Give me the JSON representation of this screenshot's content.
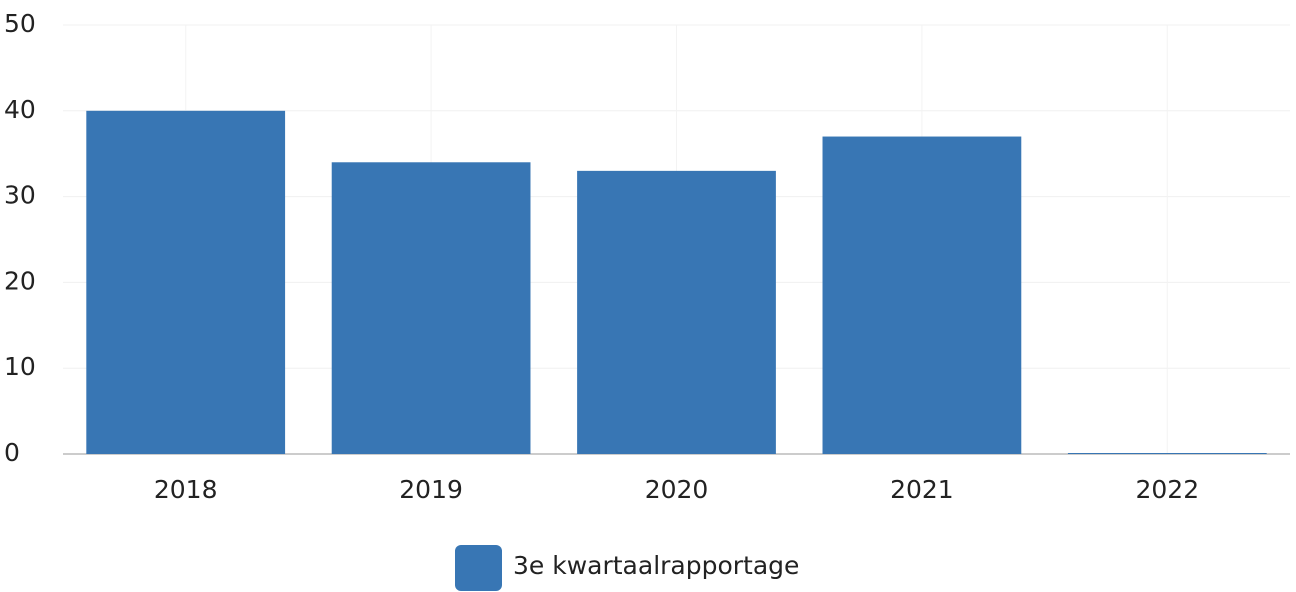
{
  "chart_data": {
    "type": "bar",
    "categories": [
      "2018",
      "2019",
      "2020",
      "2021",
      "2022"
    ],
    "series": [
      {
        "name": "3e kwartaalrapportage",
        "color": "#3876b4",
        "values": [
          40,
          34,
          33,
          37,
          0
        ]
      }
    ],
    "ylim": [
      0,
      50
    ],
    "yticks": [
      0,
      10,
      20,
      30,
      40,
      50
    ],
    "grid": true,
    "legend": "bottom"
  }
}
